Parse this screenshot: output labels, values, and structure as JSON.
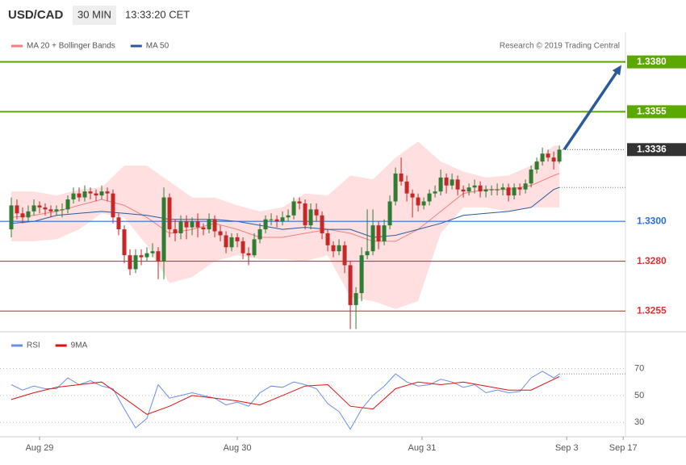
{
  "header": {
    "symbol": "USD/CAD",
    "interval": "30 MIN",
    "time": "13:33:20 CET",
    "credit": "Research © 2019 Trading Central"
  },
  "chart_data": [
    {
      "type": "candlestick",
      "up_color": "#2e7d32",
      "down_color": "#c62828",
      "xlim": [
        -2,
        108.7
      ],
      "ylim": [
        1.3245,
        1.3407
      ],
      "candles": [
        [
          1.3296,
          1.3312,
          1.3292,
          1.3308
        ],
        [
          1.3308,
          1.3311,
          1.3301,
          1.3304
        ],
        [
          1.3304,
          1.3307,
          1.3299,
          1.3302
        ],
        [
          1.3302,
          1.3308,
          1.33,
          1.3305
        ],
        [
          1.3305,
          1.3311,
          1.3303,
          1.3308
        ],
        [
          1.3308,
          1.331,
          1.3304,
          1.3307
        ],
        [
          1.3307,
          1.3309,
          1.3303,
          1.3306
        ],
        [
          1.3306,
          1.3308,
          1.3302,
          1.3305
        ],
        [
          1.3305,
          1.3308,
          1.3303,
          1.3306
        ],
        [
          1.3306,
          1.3309,
          1.3302,
          1.3306
        ],
        [
          1.3306,
          1.3313,
          1.3304,
          1.3311
        ],
        [
          1.3311,
          1.3317,
          1.3309,
          1.3314
        ],
        [
          1.3314,
          1.3317,
          1.331,
          1.3312
        ],
        [
          1.3312,
          1.3318,
          1.331,
          1.3315
        ],
        [
          1.3315,
          1.3317,
          1.3311,
          1.3314
        ],
        [
          1.3314,
          1.3316,
          1.331,
          1.3313
        ],
        [
          1.3313,
          1.3318,
          1.3311,
          1.3315
        ],
        [
          1.3315,
          1.3317,
          1.331,
          1.3314
        ],
        [
          1.3314,
          1.3316,
          1.3299,
          1.3302
        ],
        [
          1.3302,
          1.3304,
          1.3293,
          1.3296
        ],
        [
          1.3296,
          1.3298,
          1.3279,
          1.3283
        ],
        [
          1.3283,
          1.3286,
          1.3273,
          1.3276
        ],
        [
          1.3276,
          1.3286,
          1.3274,
          1.3283
        ],
        [
          1.3283,
          1.3286,
          1.3278,
          1.3282
        ],
        [
          1.3282,
          1.3287,
          1.328,
          1.3284
        ],
        [
          1.3284,
          1.3289,
          1.3282,
          1.3285
        ],
        [
          1.3285,
          1.3287,
          1.3271,
          1.328
        ],
        [
          1.328,
          1.3317,
          1.3271,
          1.3312
        ],
        [
          1.3312,
          1.3314,
          1.3292,
          1.3296
        ],
        [
          1.3296,
          1.3301,
          1.329,
          1.3294
        ],
        [
          1.3294,
          1.3303,
          1.3291,
          1.33
        ],
        [
          1.33,
          1.3303,
          1.3291,
          1.3297
        ],
        [
          1.3297,
          1.3302,
          1.3293,
          1.33
        ],
        [
          1.33,
          1.3304,
          1.3292,
          1.3297
        ],
        [
          1.3297,
          1.3299,
          1.3293,
          1.3296
        ],
        [
          1.3296,
          1.3304,
          1.3294,
          1.3301
        ],
        [
          1.3301,
          1.3303,
          1.3292,
          1.3295
        ],
        [
          1.3295,
          1.3298,
          1.329,
          1.3293
        ],
        [
          1.3293,
          1.3295,
          1.3284,
          1.3287
        ],
        [
          1.3287,
          1.3294,
          1.3285,
          1.3292
        ],
        [
          1.3292,
          1.3294,
          1.3287,
          1.329
        ],
        [
          1.329,
          1.3292,
          1.3281,
          1.3284
        ],
        [
          1.3284,
          1.3287,
          1.3278,
          1.3283
        ],
        [
          1.3283,
          1.3294,
          1.3282,
          1.3291
        ],
        [
          1.3291,
          1.3299,
          1.3289,
          1.3296
        ],
        [
          1.3296,
          1.3303,
          1.3294,
          1.3301
        ],
        [
          1.3301,
          1.3304,
          1.3298,
          1.3301
        ],
        [
          1.3301,
          1.3303,
          1.3297,
          1.33
        ],
        [
          1.33,
          1.3305,
          1.3298,
          1.3302
        ],
        [
          1.3302,
          1.3306,
          1.33,
          1.3303
        ],
        [
          1.3303,
          1.3312,
          1.3301,
          1.331
        ],
        [
          1.331,
          1.3312,
          1.3306,
          1.3309
        ],
        [
          1.3309,
          1.3311,
          1.3296,
          1.3298
        ],
        [
          1.3298,
          1.3309,
          1.3296,
          1.3306
        ],
        [
          1.3306,
          1.3309,
          1.33,
          1.3303
        ],
        [
          1.3303,
          1.3305,
          1.3291,
          1.3294
        ],
        [
          1.3294,
          1.3296,
          1.3285,
          1.3288
        ],
        [
          1.3288,
          1.329,
          1.3282,
          1.3285
        ],
        [
          1.3285,
          1.3291,
          1.3283,
          1.3288
        ],
        [
          1.3288,
          1.329,
          1.3274,
          1.3278
        ],
        [
          1.3278,
          1.328,
          1.3246,
          1.3258
        ],
        [
          1.3258,
          1.3267,
          1.3246,
          1.3264
        ],
        [
          1.3264,
          1.3287,
          1.326,
          1.3283
        ],
        [
          1.3283,
          1.3306,
          1.3281,
          1.3285
        ],
        [
          1.3285,
          1.3306,
          1.3283,
          1.3298
        ],
        [
          1.3298,
          1.33,
          1.3286,
          1.329
        ],
        [
          1.329,
          1.3301,
          1.3288,
          1.3298
        ],
        [
          1.3298,
          1.3313,
          1.3296,
          1.331
        ],
        [
          1.331,
          1.3327,
          1.3308,
          1.3324
        ],
        [
          1.3324,
          1.3332,
          1.3318,
          1.332
        ],
        [
          1.332,
          1.3323,
          1.331,
          1.3314
        ],
        [
          1.3314,
          1.3316,
          1.3302,
          1.3312
        ],
        [
          1.3312,
          1.3314,
          1.3305,
          1.3308
        ],
        [
          1.3308,
          1.3312,
          1.3306,
          1.331
        ],
        [
          1.331,
          1.3316,
          1.3308,
          1.3314
        ],
        [
          1.3314,
          1.3318,
          1.3312,
          1.3315
        ],
        [
          1.3315,
          1.3326,
          1.3313,
          1.3322
        ],
        [
          1.3322,
          1.3324,
          1.3314,
          1.3318
        ],
        [
          1.3318,
          1.3324,
          1.3316,
          1.3321
        ],
        [
          1.3321,
          1.3323,
          1.3313,
          1.3316
        ],
        [
          1.3316,
          1.3318,
          1.3312,
          1.3315
        ],
        [
          1.3315,
          1.3319,
          1.3313,
          1.3317
        ],
        [
          1.3317,
          1.3321,
          1.3314,
          1.3318
        ],
        [
          1.3318,
          1.332,
          1.3312,
          1.3315
        ],
        [
          1.3315,
          1.3318,
          1.3312,
          1.3316
        ],
        [
          1.3316,
          1.3318,
          1.3313,
          1.3316
        ],
        [
          1.3316,
          1.3319,
          1.3313,
          1.3316
        ],
        [
          1.3316,
          1.3319,
          1.3313,
          1.3317
        ],
        [
          1.3317,
          1.3319,
          1.331,
          1.3313
        ],
        [
          1.3313,
          1.3319,
          1.3311,
          1.3317
        ],
        [
          1.3317,
          1.3319,
          1.3313,
          1.3316
        ],
        [
          1.3316,
          1.3321,
          1.3314,
          1.3319
        ],
        [
          1.3319,
          1.3328,
          1.3317,
          1.3326
        ],
        [
          1.3326,
          1.3332,
          1.3324,
          1.333
        ],
        [
          1.333,
          1.3337,
          1.3328,
          1.3334
        ],
        [
          1.3334,
          1.3336,
          1.333,
          1.3332
        ],
        [
          1.3332,
          1.3335,
          1.3326,
          1.333
        ],
        [
          1.333,
          1.3338,
          1.3329,
          1.3336
        ]
      ],
      "series": [
        {
          "name": "MA 20 + Bollinger Bands",
          "color": "#f08080",
          "band_color": "#ffd9d9",
          "x": [
            0,
            4,
            8,
            12,
            16,
            20,
            24,
            28,
            32,
            36,
            40,
            44,
            48,
            52,
            56,
            60,
            64,
            68,
            72,
            76,
            80,
            84,
            88,
            92,
            96,
            97
          ],
          "values": [
            1.3302,
            1.3303,
            1.3305,
            1.3308,
            1.3311,
            1.3308,
            1.3302,
            1.3294,
            1.3296,
            1.3299,
            1.3296,
            1.3292,
            1.3292,
            1.3294,
            1.3296,
            1.3294,
            1.329,
            1.329,
            1.3296,
            1.3305,
            1.3314,
            1.3316,
            1.3316,
            1.3318,
            1.3323,
            1.3324
          ],
          "upper": [
            1.3315,
            1.3315,
            1.3313,
            1.3316,
            1.3317,
            1.3328,
            1.3328,
            1.332,
            1.3312,
            1.3312,
            1.3308,
            1.3305,
            1.3307,
            1.3314,
            1.3313,
            1.3323,
            1.3321,
            1.3332,
            1.334,
            1.333,
            1.3325,
            1.3322,
            1.3323,
            1.3328,
            1.3338,
            1.3338
          ],
          "lower": [
            1.329,
            1.329,
            1.3291,
            1.3296,
            1.3304,
            1.3302,
            1.3288,
            1.3269,
            1.3272,
            1.328,
            1.3283,
            1.3281,
            1.3281,
            1.328,
            1.3283,
            1.3262,
            1.326,
            1.3256,
            1.326,
            1.3294,
            1.3307,
            1.3307,
            1.3305,
            1.3307,
            1.3307,
            1.3307
          ]
        },
        {
          "name": "MA 50",
          "color": "#2b5a9b",
          "x": [
            0,
            4,
            8,
            12,
            16,
            20,
            24,
            28,
            32,
            36,
            40,
            44,
            48,
            52,
            56,
            60,
            64,
            68,
            72,
            76,
            80,
            84,
            88,
            92,
            96,
            97
          ],
          "values": [
            1.3299,
            1.33,
            1.3303,
            1.3304,
            1.3305,
            1.3304,
            1.3303,
            1.3301,
            1.3301,
            1.3301,
            1.33,
            1.3298,
            1.3296,
            1.3297,
            1.3296,
            1.3296,
            1.3292,
            1.3293,
            1.3296,
            1.3299,
            1.3303,
            1.3304,
            1.3305,
            1.3307,
            1.3316,
            1.3317
          ]
        }
      ],
      "levels": [
        {
          "value": 1.338,
          "label": "1.3380",
          "color": "#5aa800",
          "boxed": true,
          "line": "solid"
        },
        {
          "value": 1.3355,
          "label": "1.3355",
          "color": "#5aa800",
          "boxed": true,
          "line": "solid"
        },
        {
          "value": 1.3336,
          "label": "1.3336",
          "color": "#333333",
          "boxed": true,
          "line": "dotted"
        },
        {
          "value": 1.33,
          "label": "1.3300",
          "color": "#2a6fdb",
          "boxed": false,
          "line": "solid"
        },
        {
          "value": 1.328,
          "label": "1.3280",
          "color": "#e03030",
          "boxed": false,
          "line": "solid"
        },
        {
          "value": 1.3255,
          "label": "1.3255",
          "color": "#e03030",
          "boxed": false,
          "line": "solid"
        }
      ],
      "projection_color": "#2b5a9b"
    },
    {
      "type": "line",
      "xlim": [
        -2,
        108.7
      ],
      "ylim": [
        20,
        96
      ],
      "yticks": [
        30,
        50,
        70
      ],
      "grid": true,
      "xticks": [
        {
          "value": 5,
          "label": "Aug 29"
        },
        {
          "value": 40,
          "label": "Aug 30"
        },
        {
          "value": 72.7,
          "label": "Aug 31"
        },
        {
          "value": 98.3,
          "label": "Sep 3"
        },
        {
          "value": 108.3,
          "label": "Sep 17"
        }
      ],
      "series": [
        {
          "name": "RSI",
          "color": "#6a8ee8",
          "x": [
            0,
            2,
            4,
            6,
            8,
            10,
            12,
            14,
            16,
            18,
            20,
            22,
            24,
            26,
            28,
            30,
            32,
            34,
            36,
            38,
            40,
            42,
            44,
            46,
            48,
            50,
            52,
            54,
            56,
            58,
            60,
            62,
            64,
            66,
            68,
            70,
            72,
            74,
            76,
            78,
            80,
            82,
            84,
            86,
            88,
            90,
            92,
            94,
            96,
            97
          ],
          "values": [
            58,
            54,
            57,
            55,
            55,
            63,
            58,
            61,
            57,
            55,
            40,
            26,
            33,
            58,
            48,
            50,
            52,
            50,
            48,
            43,
            45,
            42,
            52,
            57,
            56,
            60,
            58,
            55,
            44,
            38,
            25,
            40,
            50,
            57,
            66,
            60,
            57,
            58,
            62,
            60,
            56,
            58,
            52,
            54,
            52,
            53,
            63,
            68,
            63,
            66
          ]
        },
        {
          "name": "9MA",
          "color": "#e01010",
          "x": [
            0,
            4,
            8,
            12,
            16,
            20,
            24,
            28,
            32,
            36,
            40,
            44,
            48,
            52,
            56,
            60,
            64,
            68,
            72,
            76,
            80,
            84,
            88,
            92,
            96,
            97
          ],
          "values": [
            47,
            52,
            56,
            58,
            60,
            48,
            36,
            42,
            50,
            48,
            46,
            43,
            50,
            57,
            58,
            42,
            40,
            55,
            60,
            58,
            60,
            57,
            54,
            54,
            62,
            64
          ]
        }
      ]
    }
  ]
}
